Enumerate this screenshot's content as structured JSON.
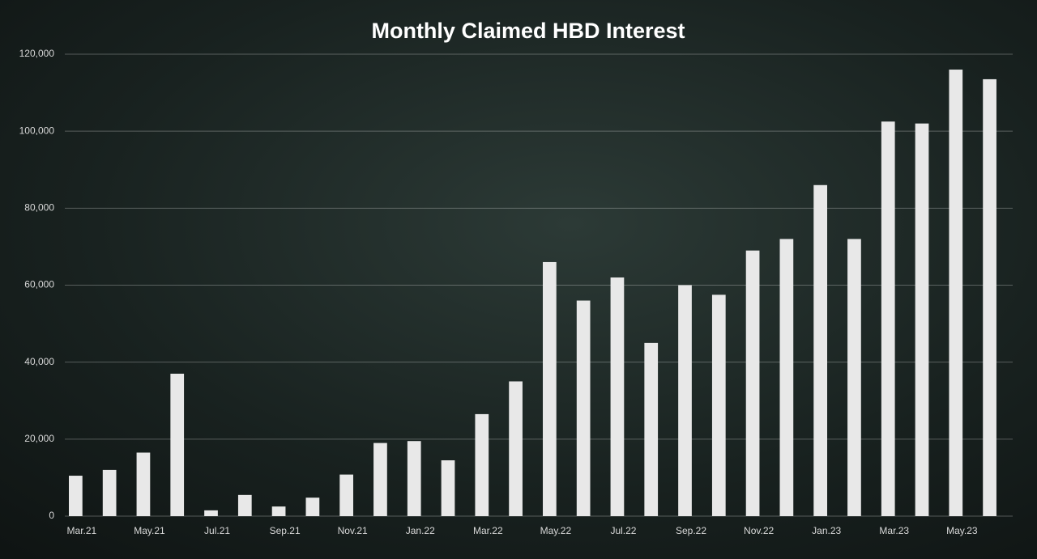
{
  "chart_data": {
    "type": "bar",
    "title": "Monthly Claimed HBD Interest",
    "categories": [
      "Mar.21",
      null,
      "May.21",
      null,
      "Jul.21",
      null,
      "Sep.21",
      null,
      "Nov.21",
      null,
      "Jan.22",
      null,
      "Mar.22",
      null,
      "May.22",
      null,
      "Jul.22",
      null,
      "Sep.22",
      null,
      "Nov.22",
      null,
      "Jan.23",
      null,
      "Mar.23",
      null,
      "May.23",
      null
    ],
    "values": [
      10500,
      12000,
      16500,
      37000,
      1500,
      5500,
      2500,
      4800,
      10800,
      19000,
      19500,
      14500,
      26500,
      35000,
      66000,
      56000,
      62000,
      45000,
      60000,
      57500,
      69000,
      72000,
      86000,
      72000,
      102500,
      102000,
      116000,
      113500
    ],
    "color": "#e8e8e8",
    "ylim": [
      0,
      120000
    ],
    "yticks": [
      0,
      {
        "value": 20000,
        "label": "20,000"
      },
      {
        "value": 40000,
        "label": "40,000"
      },
      {
        "value": 60000,
        "label": "60,000"
      },
      {
        "value": 80000,
        "label": "80,000"
      },
      {
        "value": 100000,
        "label": "100,000"
      },
      {
        "value": 120000,
        "label": "120,000"
      }
    ],
    "grid": true
  }
}
